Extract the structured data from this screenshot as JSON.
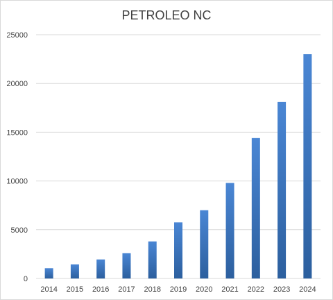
{
  "chart_data": {
    "type": "bar",
    "title": "PETROLEO NC",
    "categories": [
      "2014",
      "2015",
      "2016",
      "2017",
      "2018",
      "2019",
      "2020",
      "2021",
      "2022",
      "2023",
      "2024"
    ],
    "values": [
      1050,
      1450,
      1950,
      2600,
      3800,
      5750,
      7000,
      9800,
      14400,
      18100,
      23000
    ],
    "ylim": [
      0,
      25000
    ],
    "yticks": [
      0,
      5000,
      10000,
      15000,
      20000,
      25000
    ],
    "xlabel": "",
    "ylabel": "",
    "grid": true,
    "legend": "none",
    "bar_color_top": "#4a86d4",
    "bar_color_bottom": "#2c5f9e",
    "grid_color": "#d9d9d9"
  }
}
